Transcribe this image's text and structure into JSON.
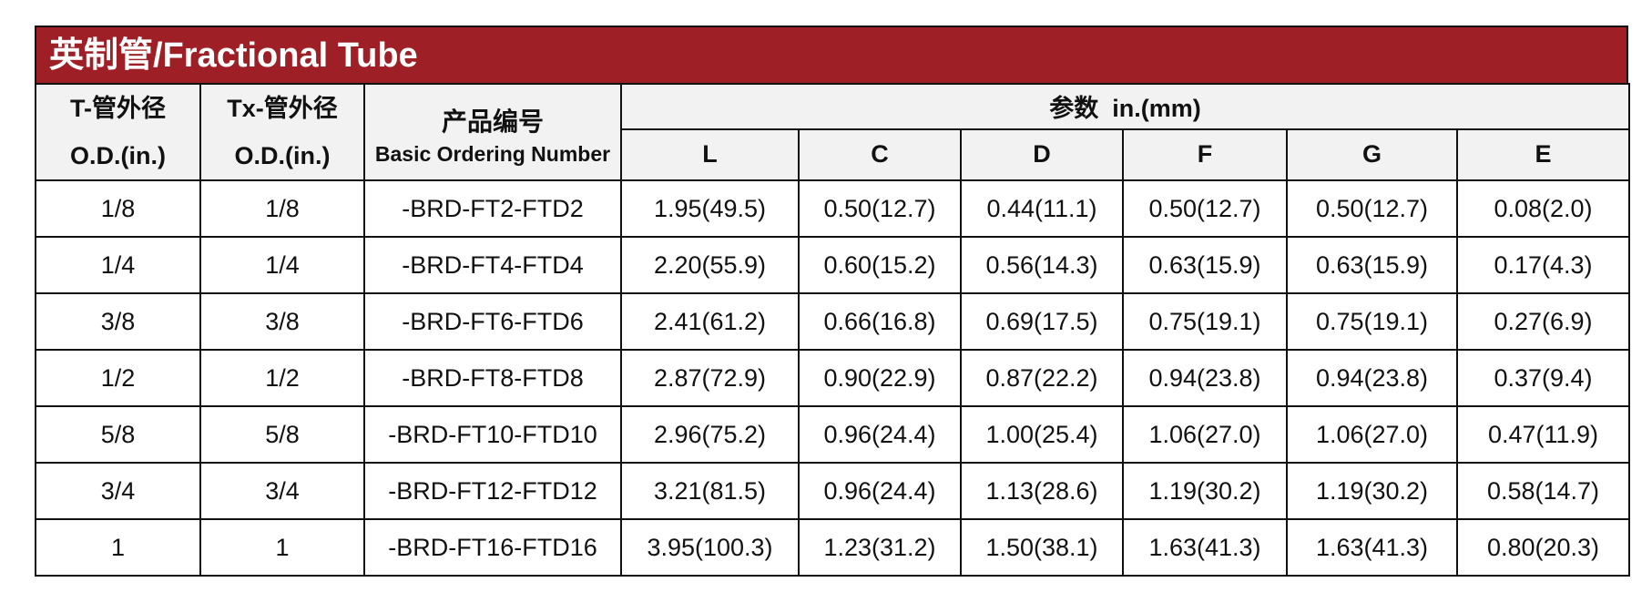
{
  "title": "英制管/Fractional Tube",
  "headers": {
    "t_od_cn": "T-管外径",
    "t_od_en": "O.D.(in.)",
    "tx_od_cn": "Tx-管外径",
    "tx_od_en": "O.D.(in.)",
    "ordering_cn": "产品编号",
    "ordering_en": "Basic Ordering Number",
    "params": "参数  in.(mm)",
    "columns": [
      "L",
      "C",
      "D",
      "F",
      "G",
      "E"
    ]
  },
  "rows": [
    {
      "t": "1/8",
      "tx": "1/8",
      "part": "-BRD-FT2-FTD2",
      "L": "1.95(49.5)",
      "C": "0.50(12.7)",
      "D": "0.44(11.1)",
      "F": "0.50(12.7)",
      "G": "0.50(12.7)",
      "E": "0.08(2.0)"
    },
    {
      "t": "1/4",
      "tx": "1/4",
      "part": "-BRD-FT4-FTD4",
      "L": "2.20(55.9)",
      "C": "0.60(15.2)",
      "D": "0.56(14.3)",
      "F": "0.63(15.9)",
      "G": "0.63(15.9)",
      "E": "0.17(4.3)"
    },
    {
      "t": "3/8",
      "tx": "3/8",
      "part": "-BRD-FT6-FTD6",
      "L": "2.41(61.2)",
      "C": "0.66(16.8)",
      "D": "0.69(17.5)",
      "F": "0.75(19.1)",
      "G": "0.75(19.1)",
      "E": "0.27(6.9)"
    },
    {
      "t": "1/2",
      "tx": "1/2",
      "part": "-BRD-FT8-FTD8",
      "L": "2.87(72.9)",
      "C": "0.90(22.9)",
      "D": "0.87(22.2)",
      "F": "0.94(23.8)",
      "G": "0.94(23.8)",
      "E": "0.37(9.4)"
    },
    {
      "t": "5/8",
      "tx": "5/8",
      "part": "-BRD-FT10-FTD10",
      "L": "2.96(75.2)",
      "C": "0.96(24.4)",
      "D": "1.00(25.4)",
      "F": "1.06(27.0)",
      "G": "1.06(27.0)",
      "E": "0.47(11.9)"
    },
    {
      "t": "3/4",
      "tx": "3/4",
      "part": "-BRD-FT12-FTD12",
      "L": "3.21(81.5)",
      "C": "0.96(24.4)",
      "D": "1.13(28.6)",
      "F": "1.19(30.2)",
      "G": "1.19(30.2)",
      "E": "0.58(14.7)"
    },
    {
      "t": "1",
      "tx": "1",
      "part": "-BRD-FT16-FTD16",
      "L": "3.95(100.3)",
      "C": "1.23(31.2)",
      "D": "1.50(38.1)",
      "F": "1.63(41.3)",
      "G": "1.63(41.3)",
      "E": "0.80(20.3)"
    }
  ],
  "colors": {
    "title_bg": "#9e2026",
    "title_text": "#ffffff",
    "header_bg": "#f2f2f2",
    "border": "#111111"
  }
}
